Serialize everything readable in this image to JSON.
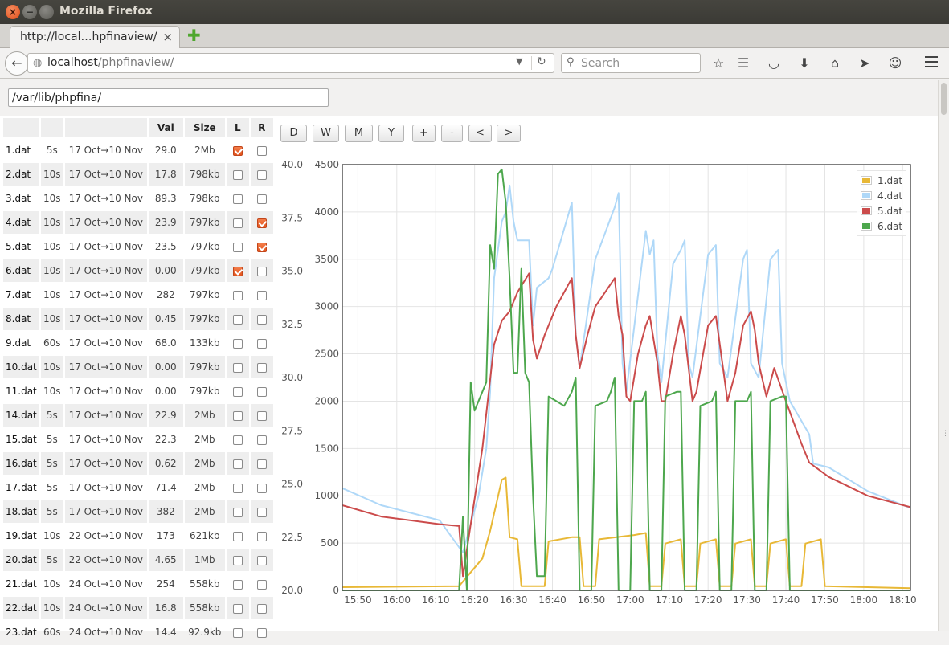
{
  "window": {
    "title": "Mozilla Firefox"
  },
  "tab": {
    "title": "http://local…hpfinaview/"
  },
  "nav": {
    "url_host": "localhost",
    "url_path": "/phpfinaview/",
    "search_placeholder": "Search"
  },
  "page": {
    "path_value": "/var/lib/phpfina/"
  },
  "table": {
    "headers": [
      "",
      "",
      "",
      "Val",
      "Size",
      "L",
      "R"
    ],
    "rows": [
      {
        "name": "1.dat",
        "interval": "5s",
        "range": "17 Oct→10 Nov",
        "val": "29.0",
        "size": "2Mb",
        "left": true,
        "right": false
      },
      {
        "name": "2.dat",
        "interval": "10s",
        "range": "17 Oct→10 Nov",
        "val": "17.8",
        "size": "798kb",
        "left": false,
        "right": false
      },
      {
        "name": "3.dat",
        "interval": "10s",
        "range": "17 Oct→10 Nov",
        "val": "89.3",
        "size": "798kb",
        "left": false,
        "right": false
      },
      {
        "name": "4.dat",
        "interval": "10s",
        "range": "17 Oct→10 Nov",
        "val": "23.9",
        "size": "797kb",
        "left": false,
        "right": true
      },
      {
        "name": "5.dat",
        "interval": "10s",
        "range": "17 Oct→10 Nov",
        "val": "23.5",
        "size": "797kb",
        "left": false,
        "right": true
      },
      {
        "name": "6.dat",
        "interval": "10s",
        "range": "17 Oct→10 Nov",
        "val": "0.00",
        "size": "797kb",
        "left": true,
        "right": false
      },
      {
        "name": "7.dat",
        "interval": "10s",
        "range": "17 Oct→10 Nov",
        "val": "282",
        "size": "797kb",
        "left": false,
        "right": false
      },
      {
        "name": "8.dat",
        "interval": "10s",
        "range": "17 Oct→10 Nov",
        "val": "0.45",
        "size": "797kb",
        "left": false,
        "right": false
      },
      {
        "name": "9.dat",
        "interval": "60s",
        "range": "17 Oct→10 Nov",
        "val": "68.0",
        "size": "133kb",
        "left": false,
        "right": false
      },
      {
        "name": "10.dat",
        "interval": "10s",
        "range": "17 Oct→10 Nov",
        "val": "0.00",
        "size": "797kb",
        "left": false,
        "right": false
      },
      {
        "name": "11.dat",
        "interval": "10s",
        "range": "17 Oct→10 Nov",
        "val": "0.00",
        "size": "797kb",
        "left": false,
        "right": false
      },
      {
        "name": "14.dat",
        "interval": "5s",
        "range": "17 Oct→10 Nov",
        "val": "22.9",
        "size": "2Mb",
        "left": false,
        "right": false
      },
      {
        "name": "15.dat",
        "interval": "5s",
        "range": "17 Oct→10 Nov",
        "val": "22.3",
        "size": "2Mb",
        "left": false,
        "right": false
      },
      {
        "name": "16.dat",
        "interval": "5s",
        "range": "17 Oct→10 Nov",
        "val": "0.62",
        "size": "2Mb",
        "left": false,
        "right": false
      },
      {
        "name": "17.dat",
        "interval": "5s",
        "range": "17 Oct→10 Nov",
        "val": "71.4",
        "size": "2Mb",
        "left": false,
        "right": false
      },
      {
        "name": "18.dat",
        "interval": "5s",
        "range": "17 Oct→10 Nov",
        "val": "382",
        "size": "2Mb",
        "left": false,
        "right": false
      },
      {
        "name": "19.dat",
        "interval": "10s",
        "range": "22 Oct→10 Nov",
        "val": "173",
        "size": "621kb",
        "left": false,
        "right": false
      },
      {
        "name": "20.dat",
        "interval": "5s",
        "range": "22 Oct→10 Nov",
        "val": "4.65",
        "size": "1Mb",
        "left": false,
        "right": false
      },
      {
        "name": "21.dat",
        "interval": "10s",
        "range": "24 Oct→10 Nov",
        "val": "254",
        "size": "558kb",
        "left": false,
        "right": false
      },
      {
        "name": "22.dat",
        "interval": "10s",
        "range": "24 Oct→10 Nov",
        "val": "16.8",
        "size": "558kb",
        "left": false,
        "right": false
      },
      {
        "name": "23.dat",
        "interval": "60s",
        "range": "24 Oct→10 Nov",
        "val": "14.4",
        "size": "92.9kb",
        "left": false,
        "right": false
      }
    ]
  },
  "range_buttons": [
    "D",
    "W",
    "M",
    "Y",
    "+",
    "-",
    "<",
    ">"
  ],
  "icons": {
    "back": "back-arrow-icon",
    "site": "globe-icon",
    "reload": "reload-icon",
    "search": "search-icon",
    "bookmark": "star-icon",
    "reader": "reading-list-icon",
    "pocket": "pocket-icon",
    "download": "download-icon",
    "home": "home-icon",
    "share": "share-icon",
    "hello": "hello-icon",
    "menu": "hamburger-menu-icon",
    "new_tab": "plus-icon"
  },
  "chart_data": {
    "type": "line",
    "x_ticks": [
      "15:50",
      "16:00",
      "16:10",
      "16:20",
      "16:30",
      "16:40",
      "16:50",
      "17:00",
      "17:10",
      "17:20",
      "17:30",
      "17:40",
      "17:50",
      "18:00",
      "18:10"
    ],
    "x_range_min": [
      945,
      1091
    ],
    "left_axis": {
      "ylim": [
        20,
        40
      ],
      "ticks": [
        "40.0",
        "37.5",
        "35.0",
        "32.5",
        "30.0",
        "27.5",
        "25.0",
        "22.5",
        "20.0"
      ]
    },
    "right_axis": {
      "ylim": [
        0,
        4500
      ],
      "ticks": [
        "4500",
        "4000",
        "3500",
        "3000",
        "2500",
        "2000",
        "1500",
        "1000",
        "500",
        "0"
      ]
    },
    "grid": true,
    "legend_position": "top-right",
    "series": [
      {
        "name": "1.dat",
        "color": "#e8b836",
        "axis": "left",
        "points": [
          [
            945,
            20.15
          ],
          [
            975,
            20.2
          ],
          [
            981,
            21.5
          ],
          [
            983,
            22.8
          ],
          [
            986,
            25.2
          ],
          [
            987,
            25.3
          ],
          [
            988,
            22.5
          ],
          [
            990,
            22.4
          ],
          [
            991,
            20.2
          ],
          [
            997,
            20.2
          ],
          [
            998,
            22.3
          ],
          [
            1004,
            22.5
          ],
          [
            1006,
            22.5
          ],
          [
            1007,
            20.2
          ],
          [
            1010,
            20.2
          ],
          [
            1011,
            22.4
          ],
          [
            1020,
            22.6
          ],
          [
            1023,
            22.7
          ],
          [
            1024,
            20.2
          ],
          [
            1027,
            20.2
          ],
          [
            1028,
            22.2
          ],
          [
            1032,
            22.4
          ],
          [
            1033,
            20.2
          ],
          [
            1036,
            20.2
          ],
          [
            1037,
            22.2
          ],
          [
            1041,
            22.4
          ],
          [
            1042,
            20.2
          ],
          [
            1045,
            20.2
          ],
          [
            1046,
            22.2
          ],
          [
            1050,
            22.4
          ],
          [
            1051,
            20.2
          ],
          [
            1054,
            20.2
          ],
          [
            1055,
            22.2
          ],
          [
            1059,
            22.4
          ],
          [
            1060,
            20.2
          ],
          [
            1063,
            20.2
          ],
          [
            1064,
            22.2
          ],
          [
            1068,
            22.4
          ],
          [
            1069,
            20.2
          ],
          [
            1091,
            20.1
          ]
        ]
      },
      {
        "name": "4.dat",
        "color": "#afd8f8",
        "axis": "right",
        "points": [
          [
            945,
            1080
          ],
          [
            955,
            900
          ],
          [
            970,
            740
          ],
          [
            976,
            400
          ],
          [
            980,
            1000
          ],
          [
            982,
            1500
          ],
          [
            983,
            2100
          ],
          [
            984,
            3300
          ],
          [
            985,
            3600
          ],
          [
            986,
            3900
          ],
          [
            987,
            4000
          ],
          [
            988,
            4280
          ],
          [
            989,
            3900
          ],
          [
            990,
            3700
          ],
          [
            993,
            3700
          ],
          [
            994,
            2800
          ],
          [
            995,
            3200
          ],
          [
            998,
            3300
          ],
          [
            999,
            3400
          ],
          [
            1004,
            4100
          ],
          [
            1005,
            2700
          ],
          [
            1006,
            2350
          ],
          [
            1010,
            3500
          ],
          [
            1015,
            4050
          ],
          [
            1016,
            4200
          ],
          [
            1017,
            2400
          ],
          [
            1018,
            2100
          ],
          [
            1023,
            3800
          ],
          [
            1024,
            3550
          ],
          [
            1025,
            3700
          ],
          [
            1026,
            2500
          ],
          [
            1027,
            2200
          ],
          [
            1030,
            3450
          ],
          [
            1032,
            3600
          ],
          [
            1033,
            3700
          ],
          [
            1034,
            2400
          ],
          [
            1035,
            2250
          ],
          [
            1039,
            3550
          ],
          [
            1041,
            3650
          ],
          [
            1042,
            2400
          ],
          [
            1044,
            2250
          ],
          [
            1048,
            3500
          ],
          [
            1049,
            3600
          ],
          [
            1050,
            2400
          ],
          [
            1052,
            2250
          ],
          [
            1055,
            3500
          ],
          [
            1057,
            3600
          ],
          [
            1058,
            2400
          ],
          [
            1060,
            2000
          ],
          [
            1065,
            1650
          ],
          [
            1066,
            1340
          ],
          [
            1070,
            1300
          ],
          [
            1080,
            1050
          ],
          [
            1091,
            870
          ]
        ]
      },
      {
        "name": "5.dat",
        "color": "#cb4b4b",
        "axis": "right",
        "points": [
          [
            945,
            900
          ],
          [
            955,
            780
          ],
          [
            970,
            700
          ],
          [
            975,
            680
          ],
          [
            976,
            150
          ],
          [
            978,
            700
          ],
          [
            981,
            1500
          ],
          [
            984,
            2600
          ],
          [
            986,
            2850
          ],
          [
            988,
            2950
          ],
          [
            990,
            3150
          ],
          [
            993,
            3350
          ],
          [
            994,
            2650
          ],
          [
            995,
            2450
          ],
          [
            997,
            2700
          ],
          [
            1000,
            3000
          ],
          [
            1004,
            3300
          ],
          [
            1005,
            2700
          ],
          [
            1006,
            2350
          ],
          [
            1008,
            2700
          ],
          [
            1010,
            3000
          ],
          [
            1015,
            3300
          ],
          [
            1016,
            2900
          ],
          [
            1017,
            2700
          ],
          [
            1018,
            2050
          ],
          [
            1019,
            2000
          ],
          [
            1021,
            2500
          ],
          [
            1023,
            2800
          ],
          [
            1024,
            2900
          ],
          [
            1026,
            2400
          ],
          [
            1027,
            2000
          ],
          [
            1028,
            2000
          ],
          [
            1030,
            2500
          ],
          [
            1032,
            2900
          ],
          [
            1033,
            2700
          ],
          [
            1035,
            2000
          ],
          [
            1036,
            2100
          ],
          [
            1039,
            2800
          ],
          [
            1041,
            2900
          ],
          [
            1043,
            2300
          ],
          [
            1044,
            2000
          ],
          [
            1046,
            2300
          ],
          [
            1048,
            2800
          ],
          [
            1050,
            2950
          ],
          [
            1051,
            2750
          ],
          [
            1052,
            2400
          ],
          [
            1054,
            2050
          ],
          [
            1056,
            2350
          ],
          [
            1059,
            2000
          ],
          [
            1063,
            1550
          ],
          [
            1065,
            1350
          ],
          [
            1070,
            1200
          ],
          [
            1080,
            1000
          ],
          [
            1091,
            880
          ]
        ]
      },
      {
        "name": "6.dat",
        "color": "#4da74d",
        "axis": "right",
        "points": [
          [
            945,
            0
          ],
          [
            975,
            0
          ],
          [
            976,
            780
          ],
          [
            977,
            0
          ],
          [
            978,
            2200
          ],
          [
            979,
            1900
          ],
          [
            980,
            2000
          ],
          [
            981,
            2100
          ],
          [
            982,
            2200
          ],
          [
            983,
            3650
          ],
          [
            984,
            3400
          ],
          [
            985,
            4400
          ],
          [
            986,
            4450
          ],
          [
            987,
            4100
          ],
          [
            988,
            3300
          ],
          [
            989,
            2300
          ],
          [
            990,
            2300
          ],
          [
            991,
            3400
          ],
          [
            992,
            2300
          ],
          [
            993,
            2200
          ],
          [
            994,
            1000
          ],
          [
            995,
            150
          ],
          [
            997,
            150
          ],
          [
            998,
            2050
          ],
          [
            1000,
            2000
          ],
          [
            1002,
            1950
          ],
          [
            1004,
            2100
          ],
          [
            1005,
            2250
          ],
          [
            1006,
            0
          ],
          [
            1009,
            0
          ],
          [
            1010,
            1950
          ],
          [
            1013,
            2000
          ],
          [
            1014,
            2100
          ],
          [
            1015,
            2250
          ],
          [
            1016,
            0
          ],
          [
            1019,
            0
          ],
          [
            1020,
            2000
          ],
          [
            1022,
            2000
          ],
          [
            1023,
            2100
          ],
          [
            1024,
            0
          ],
          [
            1027,
            0
          ],
          [
            1028,
            2050
          ],
          [
            1031,
            2100
          ],
          [
            1032,
            2100
          ],
          [
            1033,
            0
          ],
          [
            1036,
            0
          ],
          [
            1037,
            1950
          ],
          [
            1040,
            2000
          ],
          [
            1041,
            2100
          ],
          [
            1042,
            0
          ],
          [
            1045,
            0
          ],
          [
            1046,
            2000
          ],
          [
            1049,
            2000
          ],
          [
            1050,
            2100
          ],
          [
            1051,
            0
          ],
          [
            1054,
            0
          ],
          [
            1055,
            2000
          ],
          [
            1058,
            2050
          ],
          [
            1059,
            2050
          ],
          [
            1060,
            0
          ],
          [
            1091,
            0
          ]
        ]
      }
    ]
  }
}
